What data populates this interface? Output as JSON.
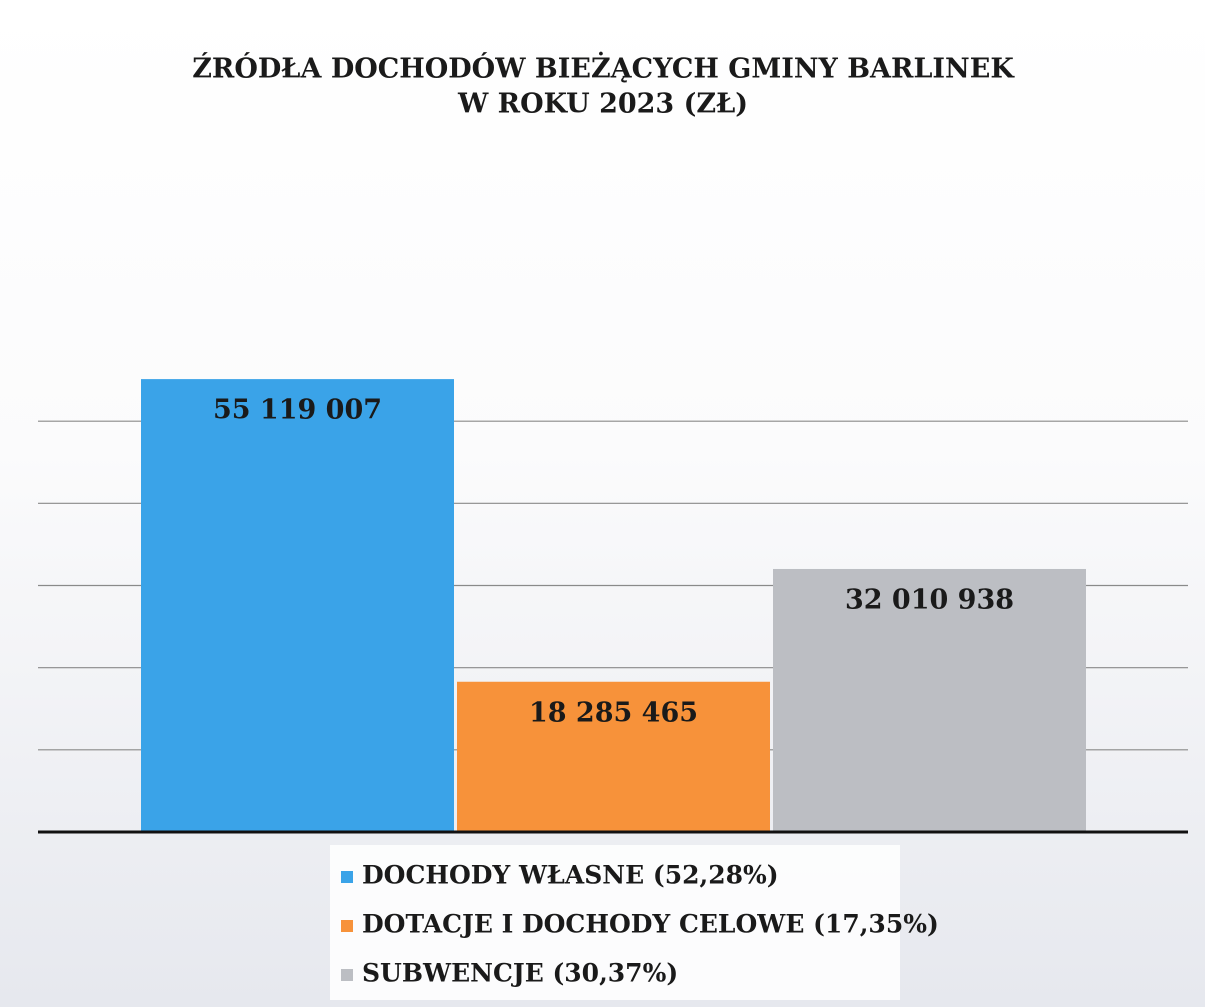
{
  "chart_data": {
    "type": "bar",
    "title": "ŹRÓDŁA DOCHODÓW BIEŻĄCYCH GMINY BARLINEK",
    "subtitle": "W ROKU 2023 (ZŁ)",
    "series": [
      {
        "name": "DOCHODY WŁASNE (52,28%)",
        "color": "#3aa3e8",
        "values": [
          55119007
        ],
        "value_labels": [
          "55 119 007"
        ]
      },
      {
        "name": "DOTACJE I DOCHODY CELOWE (17,35%)",
        "color": "#f7923a",
        "values": [
          18285465
        ],
        "value_labels": [
          "18 285 465"
        ]
      },
      {
        "name": "SUBWENCJE (30,37%)",
        "color": "#bcbec3",
        "values": [
          32010938
        ],
        "value_labels": [
          "32 010 938"
        ]
      }
    ],
    "ylim": [
      0,
      60000000
    ],
    "yticks": [
      0,
      10000000,
      20000000,
      30000000,
      40000000,
      50000000
    ],
    "grid": true
  }
}
